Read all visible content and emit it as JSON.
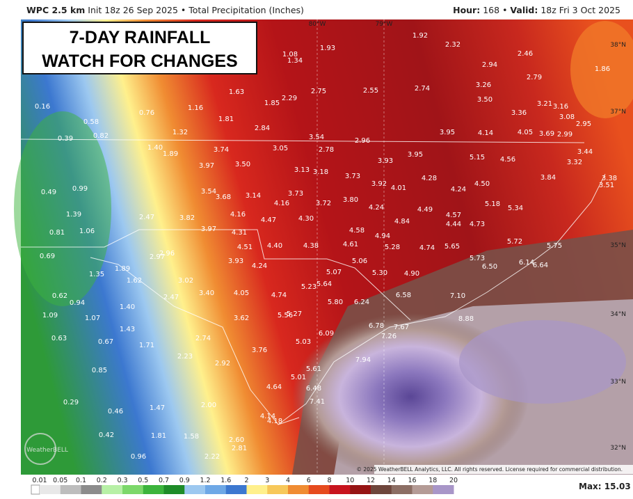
{
  "header": {
    "model": "WPC 2.5 km",
    "init": "Init 18z 26 Sep 2025",
    "separator": "•",
    "field": "Total Precipitation (Inches)",
    "hour_label": "Hour:",
    "hour": "168",
    "valid_label": "Valid:",
    "valid": "18z Fri 3 Oct 2025"
  },
  "overlay": {
    "line1": "7-DAY RAINFALL",
    "line2": "WATCH FOR CHANGES"
  },
  "lon_labels": [
    "80°W",
    "79°W"
  ],
  "lat_labels": [
    "38°N",
    "37°N",
    "35°N",
    "34°N",
    "33°N",
    "32°N"
  ],
  "points": [
    "1.92",
    "2.32",
    "2.46",
    "2.94",
    "2.79",
    "1.86",
    "1.08",
    "1.34",
    "1.93",
    "1.63",
    "1.85",
    "2.29",
    "2.75",
    "2.55",
    "2.74",
    "3.26",
    "3.50",
    "3.21",
    "3.16",
    "3.36",
    "3.08",
    "2.95",
    "0.16",
    "0.76",
    "1.16",
    "0.58",
    "0.82",
    "0.39",
    "1.81",
    "2.84",
    "1.32",
    "3.54",
    "3.95",
    "4.14",
    "4.05",
    "3.69",
    "2.99",
    "2.96",
    "1.40",
    "1.89",
    "3.74",
    "3.05",
    "2.78",
    "3.95",
    "3.93",
    "5.15",
    "4.56",
    "3.44",
    "3.32",
    "3.97",
    "3.50",
    "3.13",
    "3.18",
    "3.73",
    "4.28",
    "3.84",
    "3.38",
    "3.51",
    "0.49",
    "0.99",
    "3.54",
    "3.68",
    "3.14",
    "3.73",
    "3.92",
    "4.01",
    "4.50",
    "4.24",
    "4.16",
    "3.72",
    "3.80",
    "4.24",
    "5.18",
    "5.34",
    "4.49",
    "1.39",
    "2.47",
    "3.82",
    "4.16",
    "4.47",
    "4.30",
    "4.57",
    "4.84",
    "4.44",
    "4.73",
    "0.81",
    "1.06",
    "3.97",
    "4.31",
    "4.58",
    "4.94",
    "5.72",
    "5.75",
    "4.51",
    "4.40",
    "4.38",
    "4.61",
    "5.28",
    "4.74",
    "5.65",
    "0.69",
    "2.96",
    "2.97",
    "5.06",
    "5.73",
    "6.50",
    "6.14",
    "6.64",
    "1.89",
    "3.93",
    "4.24",
    "5.07",
    "5.30",
    "4.90",
    "1.35",
    "1.62",
    "3.02",
    "5.64",
    "5.23",
    "0.62",
    "0.94",
    "2.47",
    "3.40",
    "4.05",
    "4.74",
    "6.58",
    "7.10",
    "1.40",
    "5.80",
    "6.24",
    "1.09",
    "1.07",
    "3.62",
    "5.56",
    "5.27",
    "8.88",
    "1.43",
    "7.67",
    "6.78",
    "0.63",
    "2.74",
    "6.09",
    "7.26",
    "0.67",
    "1.71",
    "5.03",
    "3.76",
    "2.23",
    "2.92",
    "7.94",
    "0.85",
    "5.61",
    "5.01",
    "4.64",
    "6.48",
    "0.29",
    "7.41",
    "1.47",
    "2.00",
    "0.46",
    "4.14",
    "4.18",
    "0.42",
    "1.81",
    "1.58",
    "2.60",
    "2.81",
    "0.96",
    "2.22"
  ],
  "copyright": "© 2025 WeatherBELL Analytics, LLC. All rights reserved. License required for commercial distribution.",
  "logo": "WeatherBELL",
  "colorbar": {
    "labels": [
      "0.01",
      "0.05",
      "0.1",
      "0.2",
      "0.3",
      "0.5",
      "0.7",
      "0.9",
      "1.2",
      "1.6",
      "2",
      "3",
      "4",
      "6",
      "8",
      "10",
      "12",
      "14",
      "16",
      "18",
      "20"
    ],
    "colors": [
      "#e8e8e8",
      "#bdbdbd",
      "#8c8c8c",
      "#b7f0a6",
      "#7cd86a",
      "#3cb43c",
      "#1e8c28",
      "#9cc8f0",
      "#6ea8e6",
      "#3c78d0",
      "#fff08c",
      "#f7c85a",
      "#f08c32",
      "#e64b1e",
      "#c8141e",
      "#961414",
      "#6e463c",
      "#8c6e64",
      "#b49b96",
      "#a896c8"
    ],
    "max": "Max: 15.03"
  }
}
